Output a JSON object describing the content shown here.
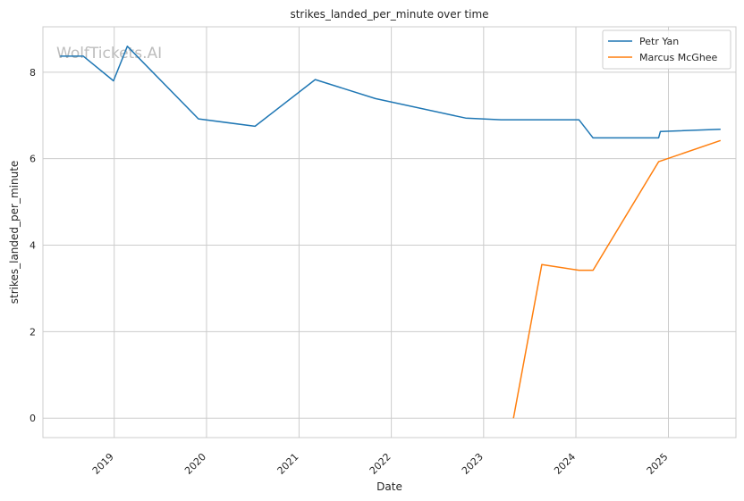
{
  "chart_data": {
    "type": "line",
    "title": "strikes_landed_per_minute over time",
    "xlabel": "Date",
    "ylabel": "strikes_landed_per_minute",
    "x_ticks": [
      "2019",
      "2020",
      "2021",
      "2022",
      "2023",
      "2024",
      "2025"
    ],
    "y_ticks": [
      0,
      2,
      4,
      6,
      8
    ],
    "xlim": [
      "2018-03-25",
      "2025-09-25"
    ],
    "ylim": [
      -0.45,
      9.05
    ],
    "grid": true,
    "legend_position": "top-right",
    "watermark": "WolfTickets.AI",
    "series": [
      {
        "name": "Petr Yan",
        "color": "#1f77b4",
        "points": [
          [
            "2018-06-01",
            8.37
          ],
          [
            "2018-09-01",
            8.37
          ],
          [
            "2018-12-29",
            7.8
          ],
          [
            "2019-02-22",
            8.6
          ],
          [
            "2019-11-30",
            6.92
          ],
          [
            "2020-07-11",
            6.75
          ],
          [
            "2021-03-06",
            7.83
          ],
          [
            "2021-10-30",
            7.39
          ],
          [
            "2022-10-22",
            6.94
          ],
          [
            "2023-03-11",
            6.9
          ],
          [
            "2024-01-13",
            6.9
          ],
          [
            "2024-03-09",
            6.48
          ],
          [
            "2024-11-23",
            6.48
          ],
          [
            "2024-11-30",
            6.63
          ],
          [
            "2025-07-26",
            6.68
          ]
        ]
      },
      {
        "name": "Marcus McGhee",
        "color": "#ff7f0e",
        "points": [
          [
            "2023-04-29",
            0.0
          ],
          [
            "2023-08-19",
            3.55
          ],
          [
            "2024-01-13",
            3.42
          ],
          [
            "2024-03-09",
            3.42
          ],
          [
            "2024-11-23",
            5.93
          ],
          [
            "2025-07-26",
            6.42
          ]
        ]
      }
    ]
  }
}
